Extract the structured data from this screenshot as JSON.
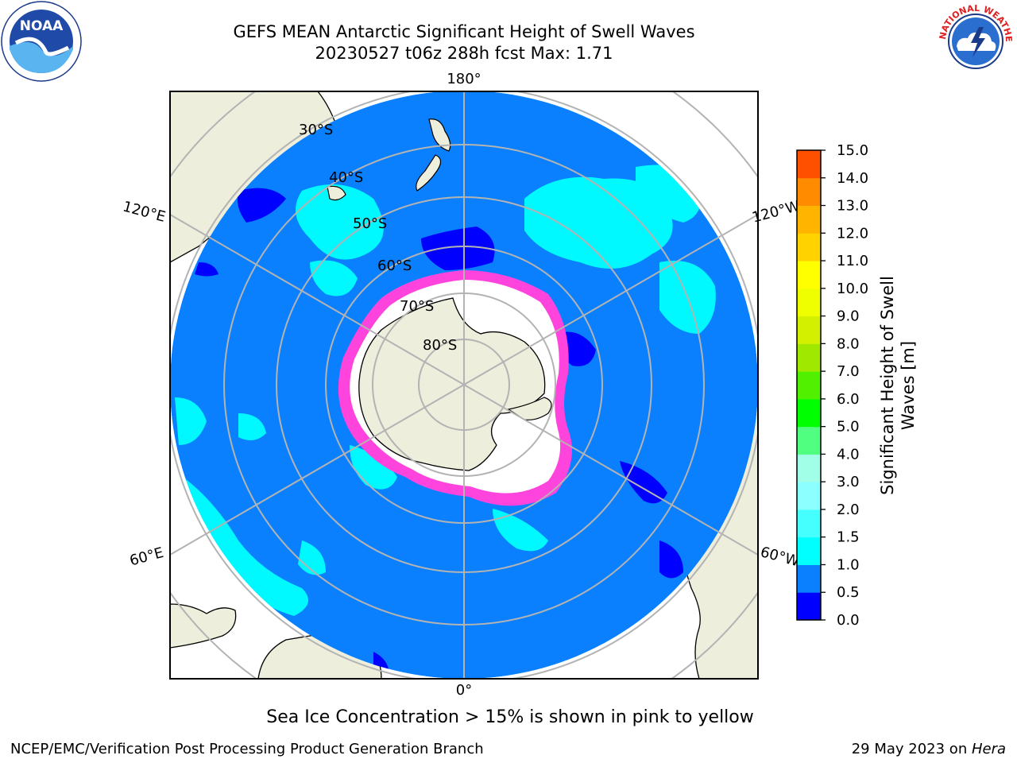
{
  "header": {
    "title_line1": "GEFS MEAN Antarctic Significant Height of Swell Waves",
    "title_line2": "20230527 t06z 288h fcst   Max: 1.71"
  },
  "logos": {
    "left": {
      "icon": "noaa-logo-icon",
      "text": "NOAA"
    },
    "right": {
      "icon": "nws-logo-icon",
      "text": "NATIONAL WEATHER SERVICE"
    }
  },
  "map": {
    "projection": "south polar stereographic",
    "longitude_labels": [
      "180°",
      "120°E",
      "120°W",
      "60°E",
      "60°W",
      "0°"
    ],
    "latitude_labels": [
      "30°S",
      "40°S",
      "50°S",
      "60°S",
      "70°S",
      "80°S"
    ],
    "colors": {
      "land": "#eeeedc",
      "ocean_base": "#0a80ff",
      "swell_low": "#0000ff",
      "swell_mid": "#00ffff",
      "sea_ice_edge": "#ff44dd",
      "sea_ice_fill": "#ffffff",
      "grid": "#b3b3b3"
    }
  },
  "colorbar": {
    "label": "Significant Height of Swell Waves [m]",
    "label_line1": "Significant Height of Swell",
    "label_line2": "Waves [m]",
    "ticks": [
      "0.0",
      "0.5",
      "1.0",
      "1.5",
      "2.0",
      "3.0",
      "4.0",
      "5.0",
      "6.0",
      "7.0",
      "8.0",
      "9.0",
      "10.0",
      "11.0",
      "12.0",
      "13.0",
      "14.0",
      "15.0"
    ],
    "colors": [
      "#0000ff",
      "#0a80ff",
      "#00ffff",
      "#45ffff",
      "#8cffff",
      "#a0ffe6",
      "#50ff7f",
      "#00ff00",
      "#50f000",
      "#a0e800",
      "#d2f000",
      "#f0ff00",
      "#ffff00",
      "#ffd200",
      "#ffb400",
      "#ff8c00",
      "#ff5000",
      "#ff1e00",
      "#ff0000"
    ]
  },
  "captions": {
    "sea_ice_note": "Sea Ice Concentration > 15% is shown in pink to yellow",
    "footer_left": "NCEP/EMC/Verification Post Processing Product Generation Branch",
    "footer_right_prefix": "29 May 2023 on ",
    "footer_right_host": "Hera"
  }
}
